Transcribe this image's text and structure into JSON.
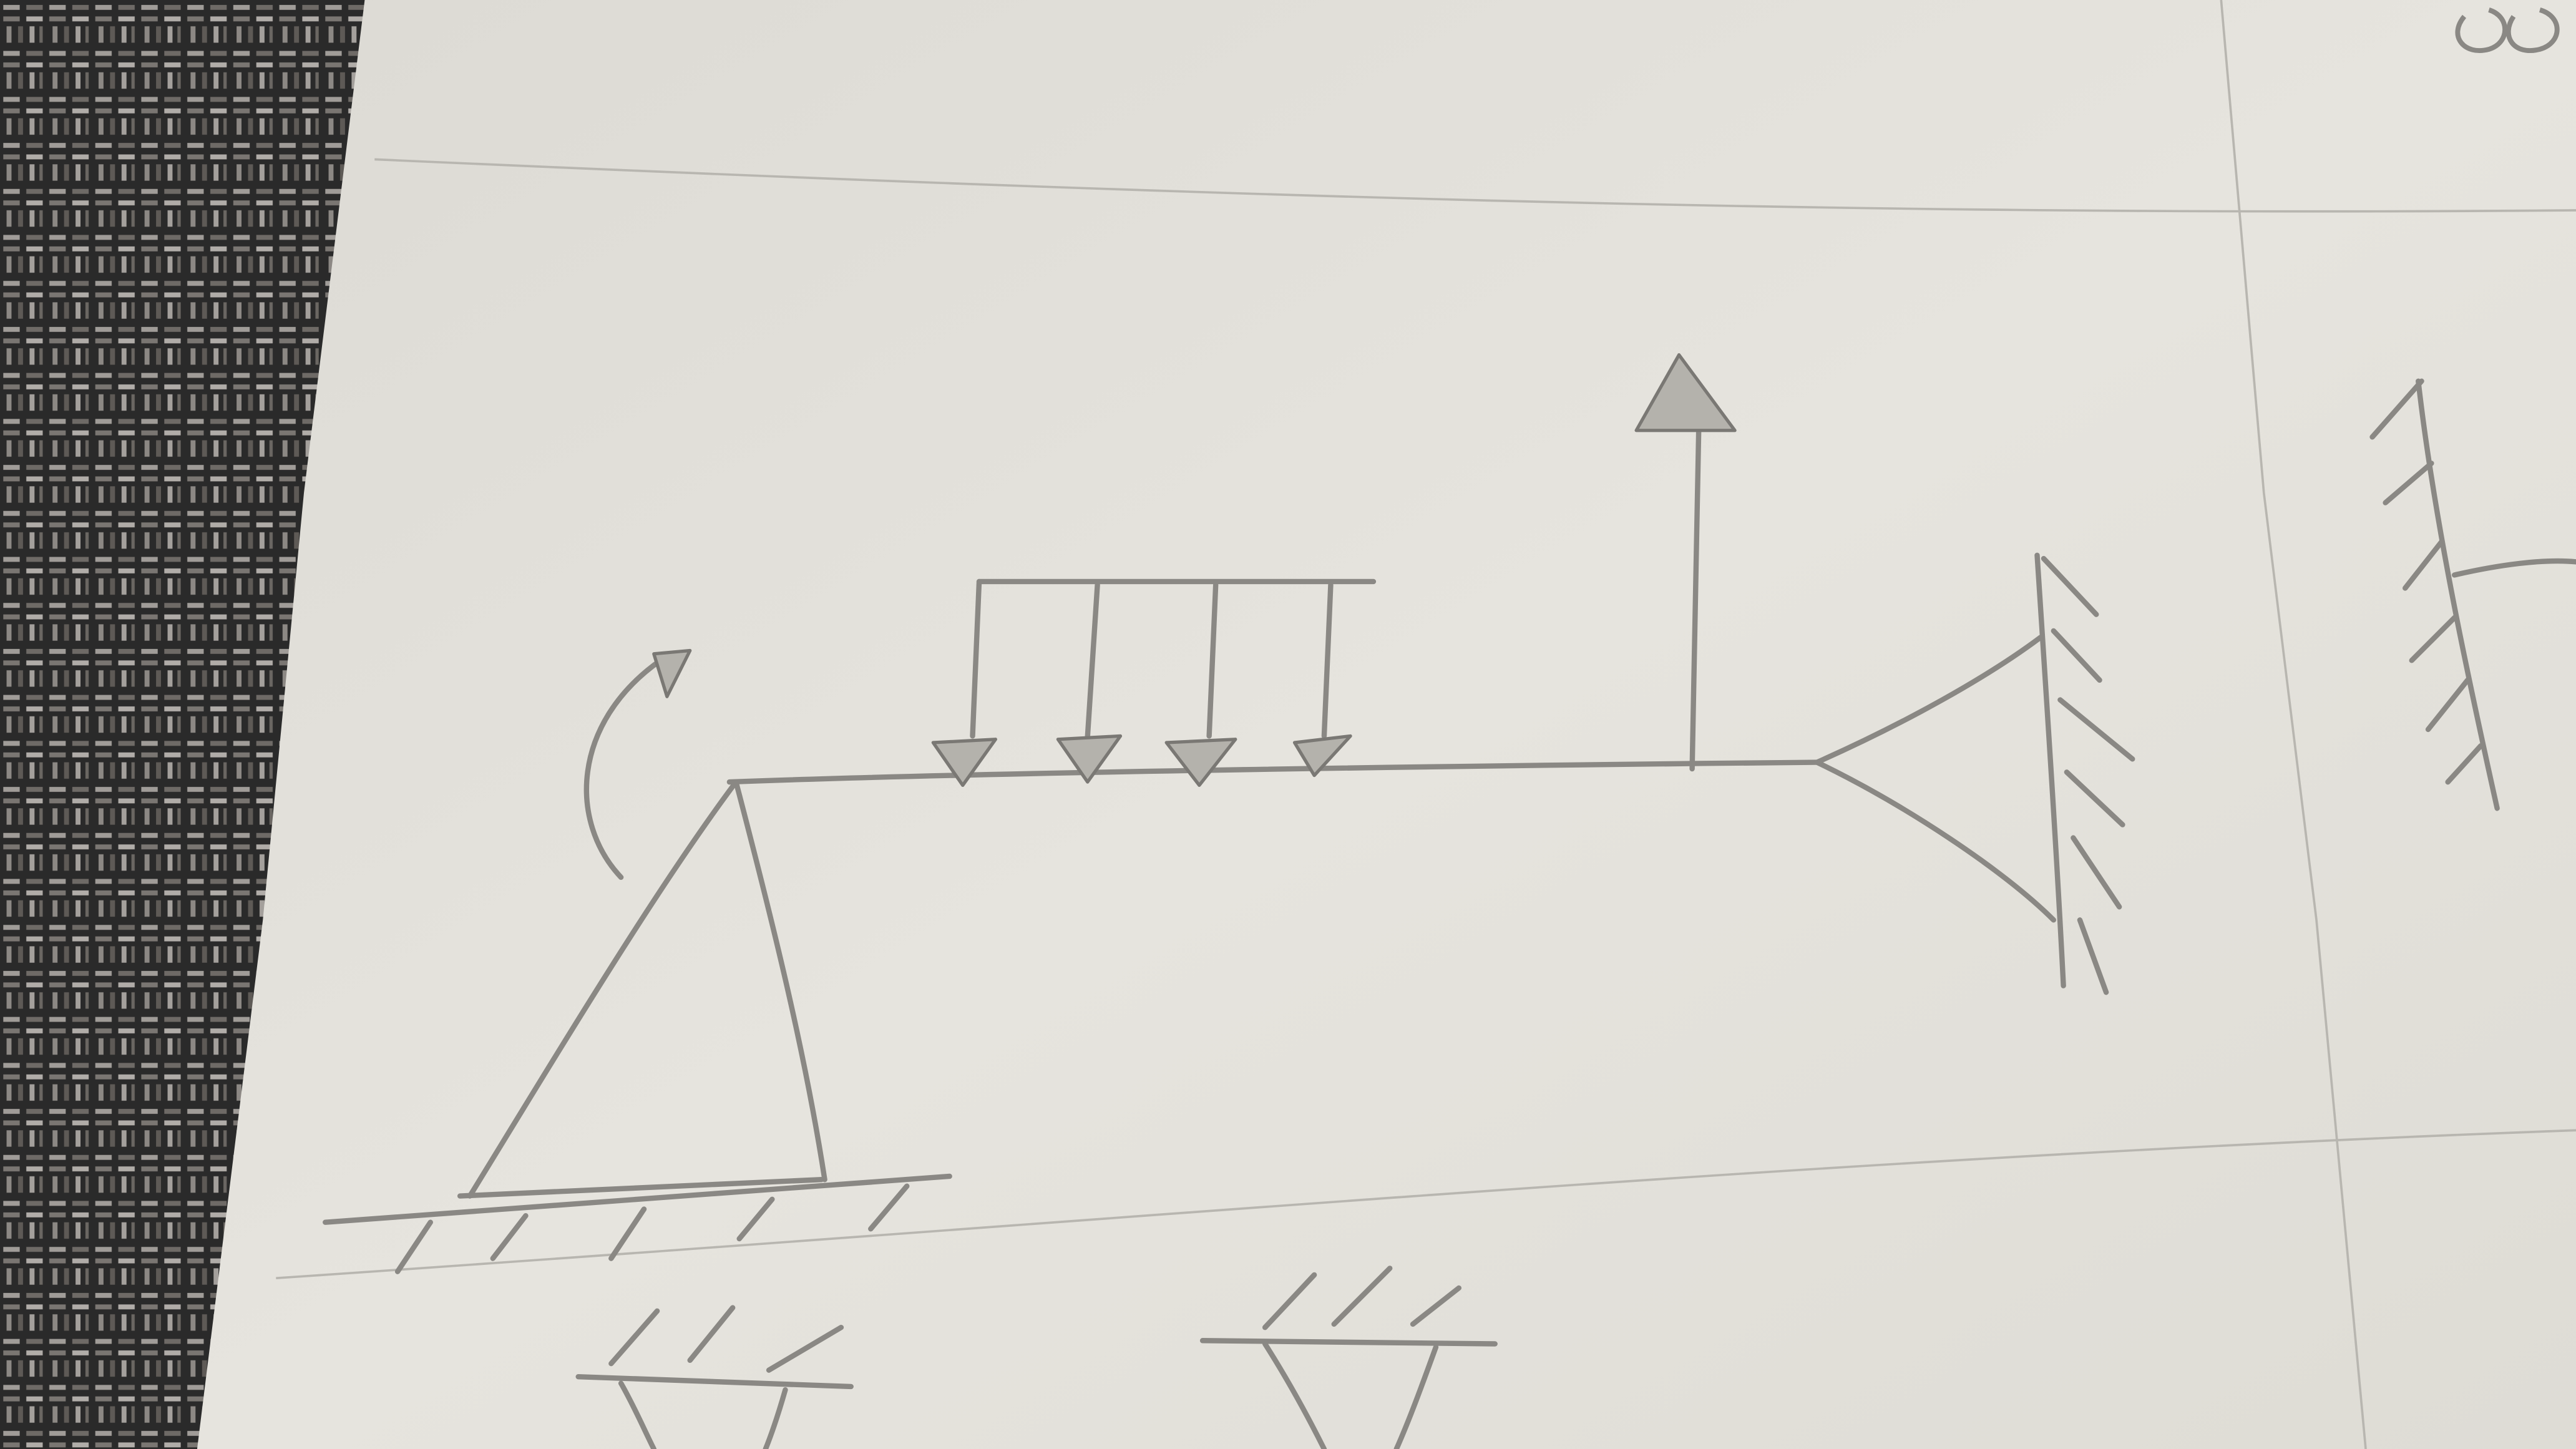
{
  "colors": {
    "tablecloth_dark": "#2a2a2a",
    "tablecloth_light": "#a09c98",
    "paper": "#e4e2dc",
    "pencil": "#8a8884",
    "pencil_fill": "#b4b2ac",
    "ruled_line": "#b8b6b0"
  },
  "diagram": {
    "elements": [
      "fixed-ground-support",
      "triangular-truss",
      "horizontal-beam",
      "distributed-load",
      "point-load-up",
      "moment-arrow",
      "pin-support-wall-right",
      "fixed-wall-far-right",
      "bottom-pin-support-left",
      "bottom-pin-support-center"
    ]
  }
}
